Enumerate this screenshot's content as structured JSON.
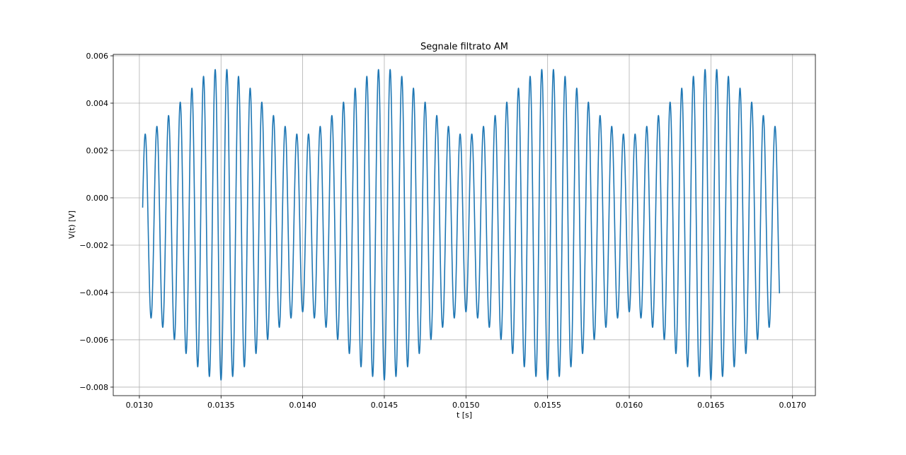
{
  "chart_data": {
    "type": "line",
    "title": "Segnale filtrato AM",
    "xlabel": "t [s]",
    "ylabel": "V(t) [V]",
    "xlim": [
      0.01284,
      0.01714
    ],
    "ylim": [
      -0.00836,
      0.00606
    ],
    "x_ticks": [
      0.013,
      0.0135,
      0.014,
      0.0145,
      0.015,
      0.0155,
      0.016,
      0.0165,
      0.017
    ],
    "x_tick_labels": [
      "0.0130",
      "0.0135",
      "0.0140",
      "0.0145",
      "0.0150",
      "0.0155",
      "0.0160",
      "0.0165",
      "0.0170"
    ],
    "y_ticks": [
      -0.008,
      -0.006,
      -0.004,
      -0.002,
      0.0,
      0.002,
      0.004,
      0.006
    ],
    "y_tick_labels": [
      "−0.008",
      "−0.006",
      "−0.004",
      "−0.002",
      "0.000",
      "0.002",
      "0.004",
      "0.006"
    ],
    "grid": true,
    "series": [
      {
        "color": "#1f77b4",
        "x_range": [
          0.01302,
          0.01692
        ],
        "signal": {
          "carrier_frequency_hz": 14000,
          "envelope_period_s": 0.001,
          "envelope_peak_time_s": 0.0135,
          "offset_v": -0.00112,
          "peak_min_v": -0.00766,
          "peak_max_v": 0.00546
        }
      }
    ]
  }
}
